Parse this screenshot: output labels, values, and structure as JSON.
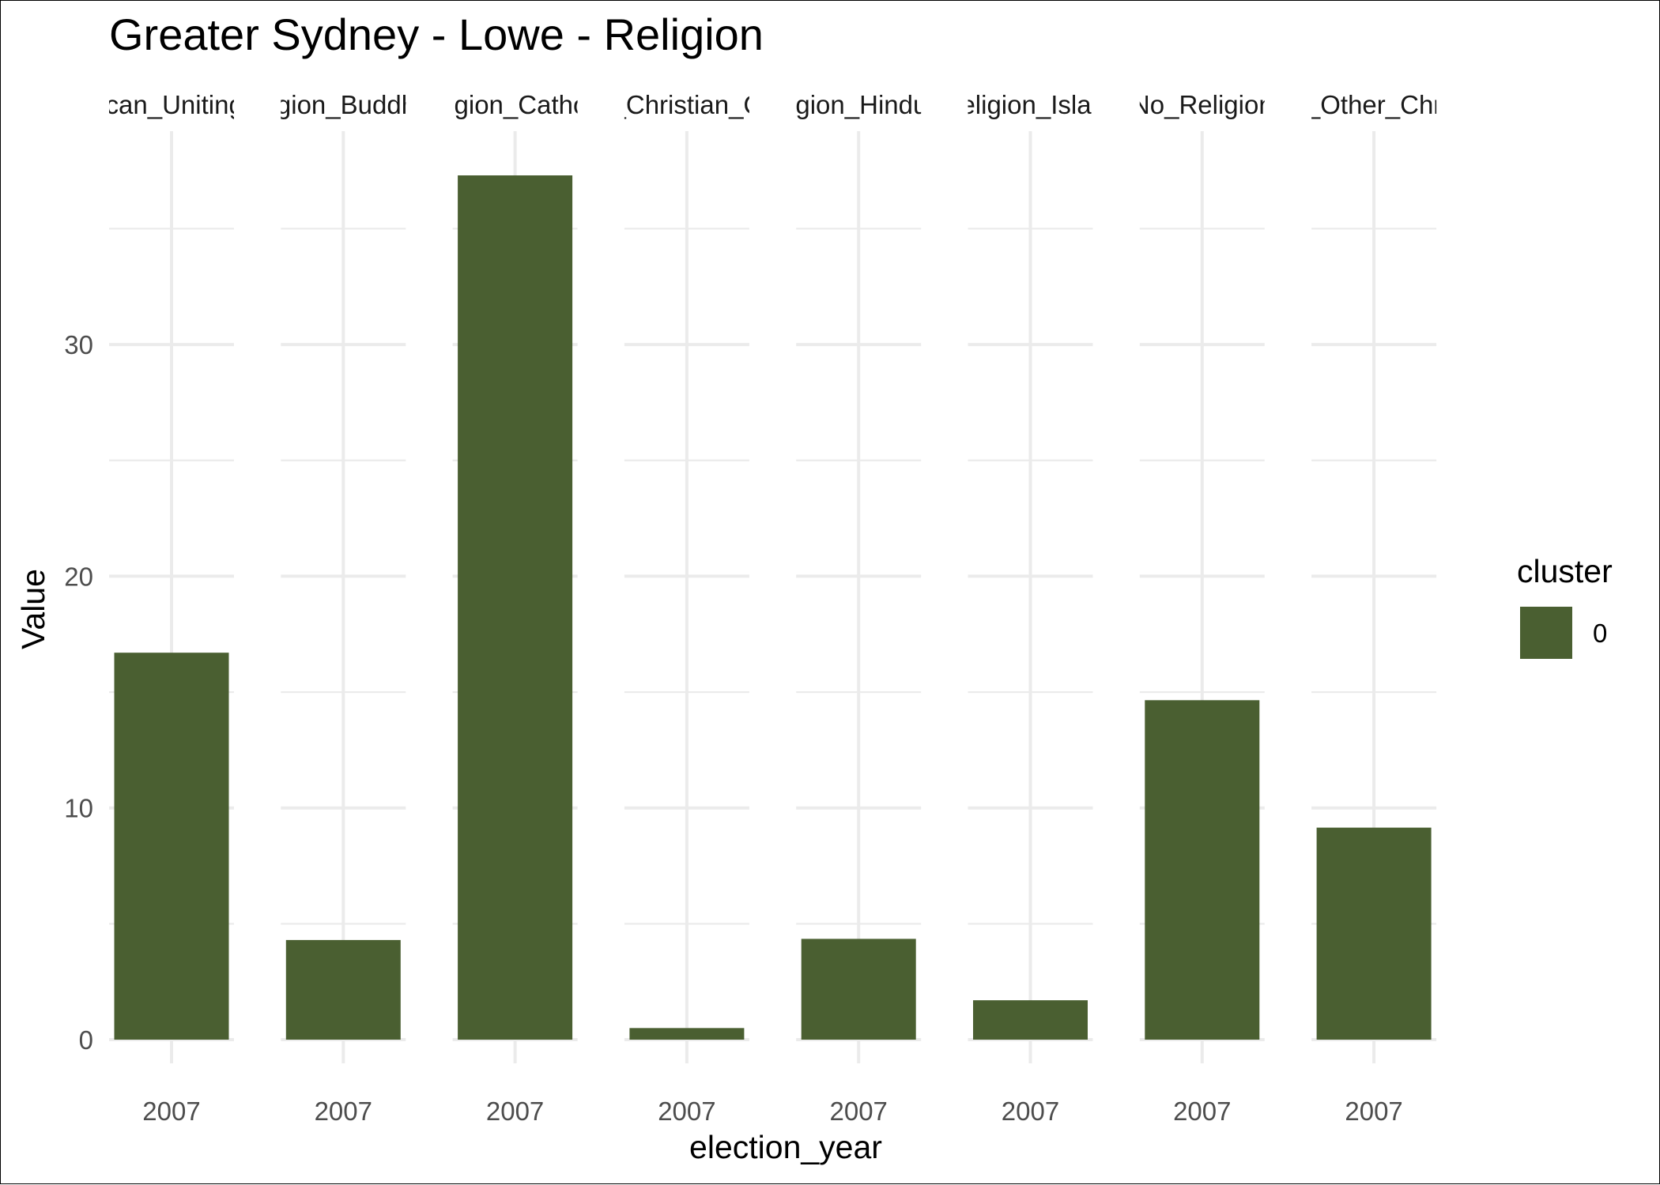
{
  "chart_data": {
    "type": "bar",
    "title": "Greater Sydney - Lowe - Religion",
    "xlabel": "election_year",
    "ylabel": "Value",
    "ylim": [
      0,
      38
    ],
    "y_ticks": [
      0,
      10,
      20,
      30
    ],
    "grid": true,
    "facet_by": "religion",
    "panels": [
      {
        "strip_label": "ican_Uniting",
        "category": "2007",
        "value": 16.7
      },
      {
        "strip_label": "igion_Buddh",
        "category": "2007",
        "value": 4.3
      },
      {
        "strip_label": "ligion_Catho",
        "category": "2007",
        "value": 37.3
      },
      {
        "strip_label": "_Christian_C",
        "category": "2007",
        "value": 0.5
      },
      {
        "strip_label": "igion_Hindu",
        "category": "2007",
        "value": 4.35
      },
      {
        "strip_label": "eligion_Islar",
        "category": "2007",
        "value": 1.7
      },
      {
        "strip_label": "No_Religion",
        "category": "2007",
        "value": 14.65
      },
      {
        "strip_label": "_Other_Chr",
        "category": "2007",
        "value": 9.15
      }
    ],
    "legend": {
      "title": "cluster",
      "position": "right",
      "entries": [
        {
          "label": "0",
          "color": "#4a5f31"
        }
      ]
    },
    "colors": {
      "bar": "#4a5f31",
      "grid": "#ebebeb"
    }
  }
}
